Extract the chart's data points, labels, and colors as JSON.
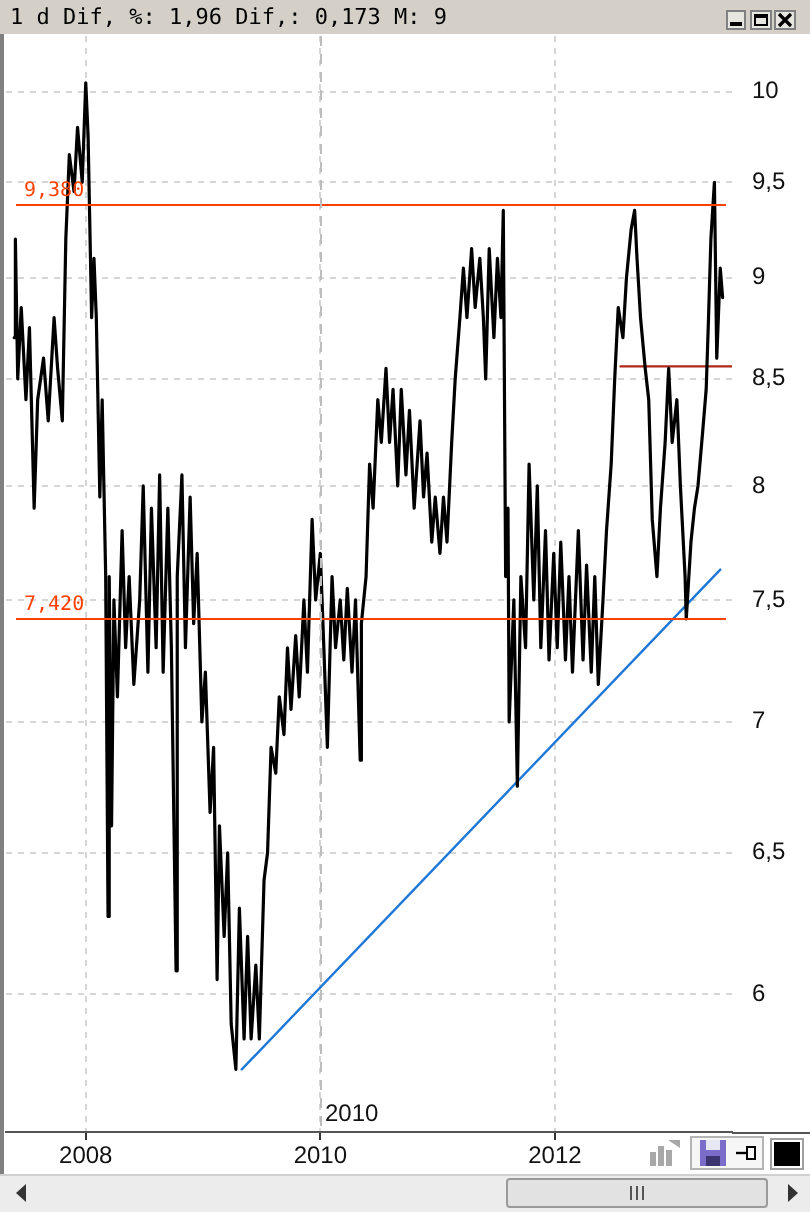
{
  "chart_data": {
    "type": "line",
    "title": "1 d Dif, %: 1,96 Dif,: 0,173 M: 9",
    "log": "y",
    "grid": true,
    "xlim": [
      2007.32,
      2013.51
    ],
    "xticks": [
      2008,
      2010,
      2012
    ],
    "ylim": [
      5.55,
      10.32
    ],
    "yticks": [
      6,
      {
        "value": 6.5,
        "label": "6,5"
      },
      7,
      {
        "value": 7.5,
        "label": "7,5"
      },
      8,
      {
        "value": 8.5,
        "label": "8,5"
      },
      9,
      {
        "value": 9.5,
        "label": "9,5"
      },
      10
    ],
    "x": [
      2007.39,
      2007.4,
      2007.42,
      2007.45,
      2007.49,
      2007.52,
      2007.56,
      2007.59,
      2007.64,
      2007.68,
      2007.73,
      2007.76,
      2007.8,
      2007.83,
      2007.86,
      2007.9,
      2007.93,
      2007.97,
      2008.0,
      2008.02,
      2008.05,
      2008.07,
      2008.09,
      2008.12,
      2008.14,
      2008.17,
      2008.19,
      2008.2,
      2008.22,
      2008.24,
      2008.27,
      2008.31,
      2008.34,
      2008.37,
      2008.41,
      2008.46,
      2008.49,
      2008.53,
      2008.56,
      2008.6,
      2008.63,
      2008.66,
      2008.7,
      2008.73,
      2008.77,
      2008.78,
      2008.82,
      2008.85,
      2008.89,
      2008.92,
      2008.95,
      2008.99,
      2009.02,
      2009.06,
      2009.09,
      2009.12,
      2009.14,
      2009.18,
      2009.21,
      2009.24,
      2009.28,
      2009.31,
      2009.35,
      2009.38,
      2009.41,
      2009.45,
      2009.48,
      2009.52,
      2009.55,
      2009.58,
      2009.62,
      2009.65,
      2009.69,
      2009.72,
      2009.75,
      2009.79,
      2009.82,
      2009.86,
      2009.89,
      2009.93,
      2009.96,
      2010.0,
      2010.03,
      2010.06,
      2010.1,
      2010.13,
      2010.17,
      2010.2,
      2010.23,
      2010.27,
      2010.3,
      2010.34,
      2010.35,
      2010.39,
      2010.42,
      2010.45,
      2010.49,
      2010.52,
      2010.56,
      2010.59,
      2010.62,
      2010.66,
      2010.69,
      2010.73,
      2010.76,
      2010.8,
      2010.85,
      2010.88,
      2010.91,
      2010.95,
      2010.98,
      2011.02,
      2011.05,
      2011.08,
      2011.12,
      2011.15,
      2011.19,
      2011.22,
      2011.25,
      2011.29,
      2011.32,
      2011.36,
      2011.39,
      2011.41,
      2011.44,
      2011.48,
      2011.51,
      2011.54,
      2011.56,
      2011.58,
      2011.6,
      2011.61,
      2011.65,
      2011.68,
      2011.71,
      2011.75,
      2011.78,
      2011.82,
      2011.85,
      2011.88,
      2011.92,
      2011.95,
      2011.99,
      2012.02,
      2012.05,
      2012.09,
      2012.12,
      2012.15,
      2012.2,
      2012.24,
      2012.27,
      2012.31,
      2012.34,
      2012.37,
      2012.41,
      2012.44,
      2012.48,
      2012.51,
      2012.54,
      2012.58,
      2012.61,
      2012.65,
      2012.68,
      2012.7,
      2012.73,
      2012.77,
      2012.8,
      2012.83,
      2012.87,
      2012.9,
      2012.94,
      2012.97,
      2013.0,
      2013.04,
      2013.07,
      2013.11,
      2013.12,
      2013.16,
      2013.19,
      2013.22,
      2013.26,
      2013.29,
      2013.31,
      2013.33,
      2013.36,
      2013.38,
      2013.41,
      2013.43
    ],
    "series": [
      {
        "color": "#000000",
        "values": [
          8.7,
          9.2,
          8.5,
          8.85,
          8.4,
          8.75,
          7.9,
          8.4,
          8.6,
          8.3,
          8.8,
          8.55,
          8.3,
          9.2,
          9.65,
          9.45,
          9.8,
          9.5,
          10.05,
          9.75,
          8.8,
          9.1,
          8.8,
          7.95,
          8.4,
          7.6,
          6.27,
          7.6,
          6.6,
          7.5,
          7.1,
          7.8,
          7.3,
          7.6,
          7.15,
          7.5,
          8.0,
          7.2,
          7.9,
          7.3,
          8.05,
          7.2,
          7.9,
          7.3,
          6.08,
          7.6,
          8.05,
          7.3,
          7.95,
          7.4,
          7.7,
          7.0,
          7.2,
          6.65,
          6.9,
          6.05,
          6.6,
          6.2,
          6.5,
          5.9,
          5.75,
          6.3,
          5.85,
          6.2,
          5.85,
          6.1,
          5.85,
          6.4,
          6.5,
          6.9,
          6.8,
          7.1,
          6.95,
          7.3,
          7.05,
          7.35,
          7.1,
          7.5,
          7.2,
          7.85,
          7.5,
          7.7,
          7.3,
          6.9,
          7.6,
          7.3,
          7.5,
          7.25,
          7.55,
          7.2,
          7.5,
          6.85,
          7.4,
          7.6,
          8.1,
          7.9,
          8.4,
          8.2,
          8.55,
          8.2,
          8.45,
          8.0,
          8.45,
          8.05,
          8.35,
          7.9,
          8.3,
          7.95,
          8.15,
          7.75,
          7.95,
          7.7,
          7.95,
          7.75,
          8.2,
          8.5,
          8.8,
          9.05,
          8.8,
          9.15,
          8.85,
          9.1,
          8.8,
          8.5,
          9.15,
          8.7,
          9.1,
          8.8,
          9.35,
          7.6,
          7.9,
          7.0,
          7.5,
          6.75,
          7.6,
          7.3,
          8.1,
          7.5,
          8.0,
          7.3,
          7.8,
          7.25,
          7.7,
          7.3,
          7.75,
          7.25,
          7.6,
          7.2,
          7.8,
          7.25,
          7.65,
          7.2,
          7.6,
          7.15,
          7.5,
          7.8,
          8.1,
          8.5,
          8.85,
          8.7,
          9.0,
          9.25,
          9.35,
          9.1,
          8.8,
          8.55,
          8.4,
          7.85,
          7.6,
          7.9,
          8.2,
          8.55,
          8.2,
          8.4,
          8.0,
          7.6,
          7.42,
          7.75,
          7.9,
          8.0,
          8.25,
          8.45,
          8.8,
          9.2,
          9.5,
          8.6,
          9.05,
          8.9
        ]
      },
      {
        "type": "line",
        "x": [
          2009.33,
          2013.41
        ],
        "color": "#1e78d8",
        "values": [
          5.75,
          7.63
        ]
      },
      {
        "type": "line",
        "x": [
          2012.56,
          2013.51
        ],
        "color": "#b02818",
        "values": [
          8.56,
          8.56
        ]
      }
    ],
    "ref_lines": [
      {
        "axis": "y",
        "value": 9.38,
        "label": "9,380",
        "color": "#ff4000"
      },
      {
        "axis": "y",
        "value": 7.42,
        "label": "7,420",
        "color": "#ff4000"
      },
      {
        "axis": "x",
        "value": 2010,
        "label": "2010",
        "color": "#bdbdbd",
        "line_style": "dashed"
      }
    ]
  }
}
